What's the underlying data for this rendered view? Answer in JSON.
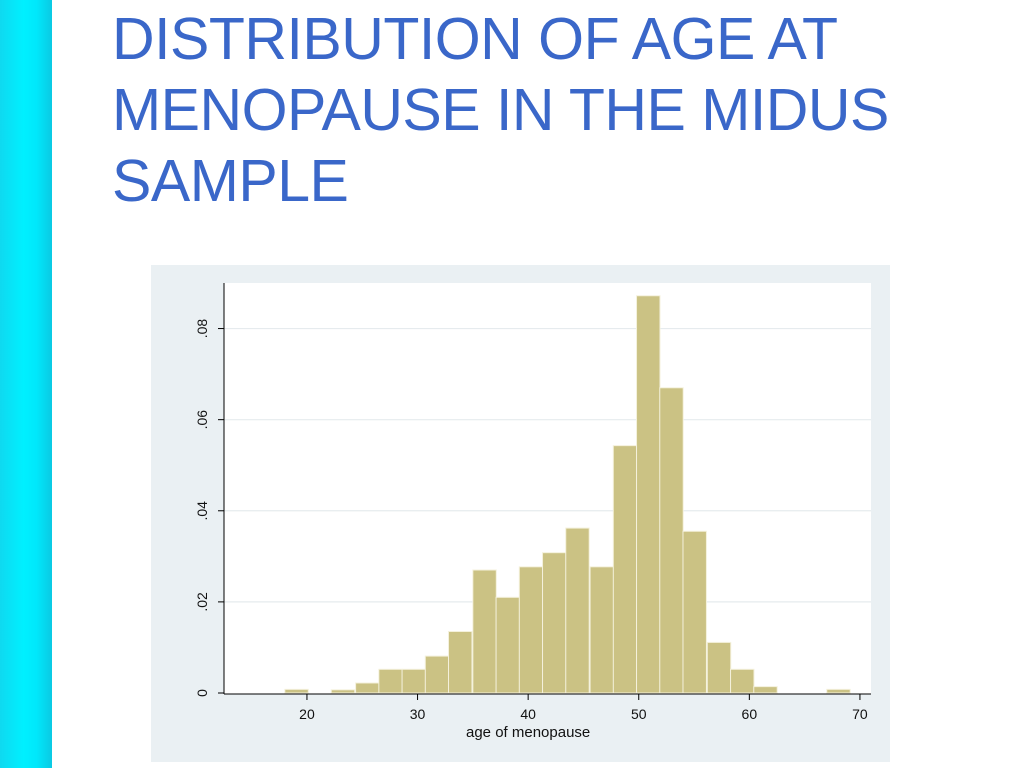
{
  "slide": {
    "title": "DISTRIBUTION OF AGE AT\nMENOPAUSE IN THE MIDUS\nSAMPLE",
    "accent_color": "#00e8fb",
    "title_color": "#3a67c9"
  },
  "chart_data": {
    "type": "bar",
    "xlabel": "age of menopause",
    "ylabel": "",
    "xlim": [
      12.5,
      71
    ],
    "ylim": [
      0,
      0.09
    ],
    "xticks": [
      20,
      30,
      40,
      50,
      60,
      70
    ],
    "xtick_labels": [
      "20",
      "30",
      "40",
      "50",
      "60",
      "70"
    ],
    "yticks": [
      0,
      0.02,
      0.04,
      0.06,
      0.08
    ],
    "ytick_labels": [
      "0",
      ".02",
      ".04",
      ".06",
      ".08"
    ],
    "grid": true,
    "bar_color": "#cbc284",
    "bin_width": 2.12,
    "bins": [
      {
        "x0": 18.0,
        "density": 0.0008
      },
      {
        "x0": 22.2,
        "density": 0.0007
      },
      {
        "x0": 24.4,
        "density": 0.0022
      },
      {
        "x0": 26.5,
        "density": 0.0052
      },
      {
        "x0": 28.6,
        "density": 0.0052
      },
      {
        "x0": 30.7,
        "density": 0.0081
      },
      {
        "x0": 32.8,
        "density": 0.0135
      },
      {
        "x0": 35.0,
        "density": 0.027
      },
      {
        "x0": 37.1,
        "density": 0.021
      },
      {
        "x0": 39.2,
        "density": 0.0277
      },
      {
        "x0": 41.3,
        "density": 0.0308
      },
      {
        "x0": 43.4,
        "density": 0.0362
      },
      {
        "x0": 45.6,
        "density": 0.0277
      },
      {
        "x0": 47.7,
        "density": 0.0543
      },
      {
        "x0": 49.8,
        "density": 0.0872
      },
      {
        "x0": 51.9,
        "density": 0.067
      },
      {
        "x0": 54.0,
        "density": 0.0355
      },
      {
        "x0": 56.2,
        "density": 0.0111
      },
      {
        "x0": 58.3,
        "density": 0.0052
      },
      {
        "x0": 60.4,
        "density": 0.0014
      },
      {
        "x0": 67.0,
        "density": 0.0008
      }
    ]
  }
}
